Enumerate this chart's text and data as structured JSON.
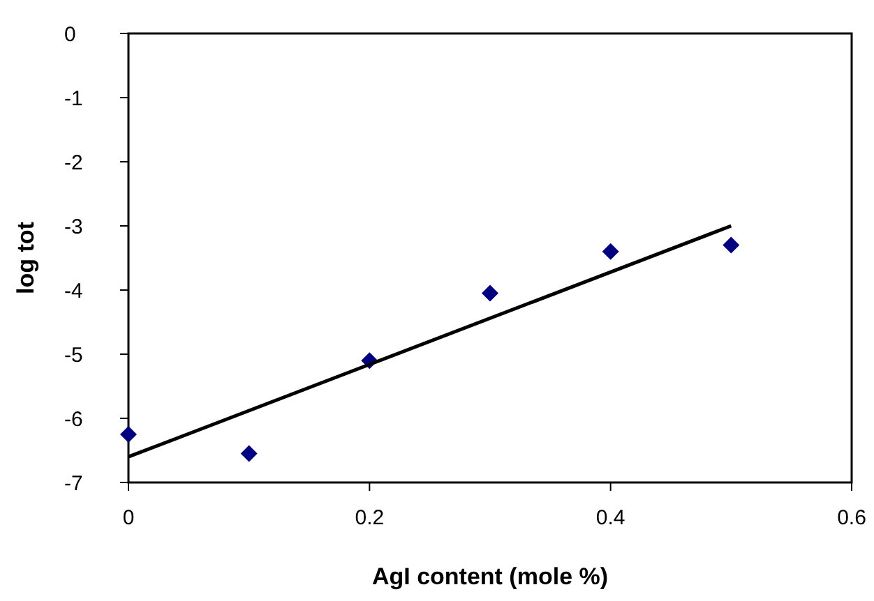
{
  "chart_data": {
    "type": "scatter",
    "xlabel": "AgI content (mole %)",
    "ylabel": "log tot",
    "x": [
      0,
      0.1,
      0.2,
      0.3,
      0.4,
      0.5
    ],
    "series": [
      {
        "color": "#000080",
        "marker": "diamond",
        "values": [
          -6.25,
          -6.55,
          -5.1,
          -4.05,
          -3.4,
          -3.3
        ]
      },
      {
        "type": "line",
        "color": "#000000",
        "marker": "none",
        "x": [
          0,
          0.5
        ],
        "values": [
          -6.6,
          -3
        ]
      }
    ],
    "xlim": [
      0,
      0.6
    ],
    "xticks": [
      0,
      0.2,
      0.4,
      0.6
    ],
    "ylim": [
      -7,
      0
    ],
    "yticks": [
      0,
      -1,
      -2,
      -3,
      -4,
      -5,
      -6,
      -7
    ],
    "grid": false
  }
}
